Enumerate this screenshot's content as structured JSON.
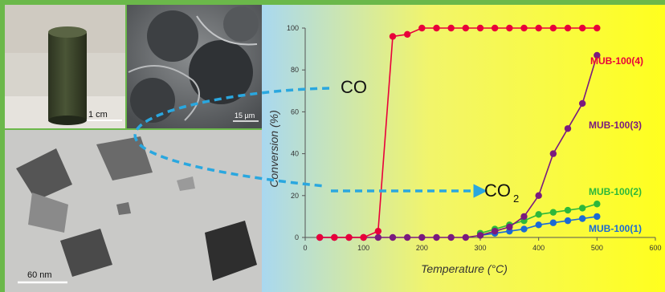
{
  "colors": {
    "frame": "#6bb84a",
    "bg_left": "#a9d8f0",
    "bg_right": "#ffff1e",
    "mub4": "#e8003a",
    "mub3": "#7a1a7f",
    "mub2": "#2db83a",
    "mub1": "#1a6ad6",
    "arrow": "#2aa7df"
  },
  "photos": {
    "scale_1cm": "1 cm",
    "scale_sem": "15 µm",
    "scale_tem": "60 nm"
  },
  "annotations": {
    "co": "CO",
    "co2_main": "CO",
    "co2_sub": "2"
  },
  "chart_data": {
    "type": "scatter",
    "xlabel": "Temperature (°C)",
    "ylabel": "Conversion (%)",
    "xlim": [
      0,
      600
    ],
    "ylim": [
      0,
      100
    ],
    "xticks": [
      0,
      100,
      200,
      300,
      400,
      500,
      600
    ],
    "yticks": [
      0,
      20,
      40,
      60,
      80,
      100
    ],
    "grid": false,
    "series": [
      {
        "name": "MUB-100(4)",
        "color": "#e8003a",
        "x": [
          25,
          50,
          75,
          100,
          125,
          150,
          175,
          200,
          225,
          250,
          275,
          300,
          325,
          350,
          375,
          400,
          425,
          450,
          475,
          500
        ],
        "y": [
          0,
          0,
          0,
          0,
          3,
          96,
          97,
          100,
          100,
          100,
          100,
          100,
          100,
          100,
          100,
          100,
          100,
          100,
          100,
          100
        ]
      },
      {
        "name": "MUB-100(3)",
        "color": "#7a1a7f",
        "x": [
          25,
          50,
          75,
          100,
          125,
          150,
          175,
          200,
          225,
          250,
          275,
          300,
          325,
          350,
          375,
          400,
          425,
          450,
          475,
          500
        ],
        "y": [
          0,
          0,
          0,
          0,
          0,
          0,
          0,
          0,
          0,
          0,
          0,
          1,
          3,
          5,
          10,
          20,
          40,
          52,
          64,
          87
        ]
      },
      {
        "name": "MUB-100(2)",
        "color": "#2db83a",
        "x": [
          300,
          325,
          350,
          375,
          400,
          425,
          450,
          475,
          500
        ],
        "y": [
          2,
          4,
          6,
          8,
          11,
          12,
          13,
          14,
          16
        ]
      },
      {
        "name": "MUB-100(1)",
        "color": "#1a6ad6",
        "x": [
          300,
          325,
          350,
          375,
          400,
          425,
          450,
          475,
          500
        ],
        "y": [
          1,
          2,
          3,
          4,
          6,
          7,
          8,
          9,
          10
        ]
      }
    ]
  }
}
